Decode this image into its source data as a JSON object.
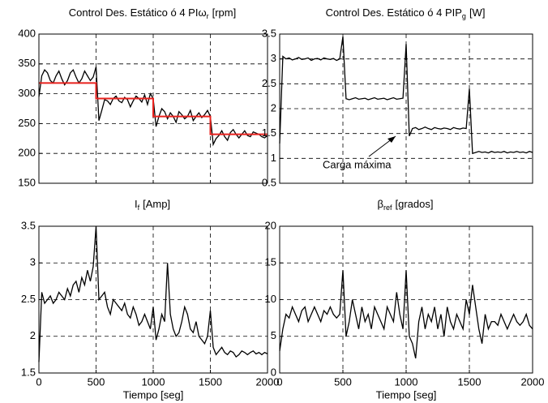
{
  "chart_data": [
    {
      "type": "line",
      "title": "Control Des. Estático ó 4 PI",
      "ylabel": {
        "symbol": "ω",
        "subscript": "r",
        "unit": "[rpm]"
      },
      "x": [
        0,
        25,
        50,
        75,
        100,
        125,
        150,
        175,
        200,
        225,
        250,
        275,
        300,
        325,
        350,
        375,
        400,
        425,
        450,
        475,
        500,
        525,
        550,
        575,
        600,
        625,
        650,
        675,
        700,
        725,
        750,
        775,
        800,
        825,
        850,
        875,
        900,
        925,
        950,
        975,
        1000,
        1025,
        1050,
        1075,
        1100,
        1125,
        1150,
        1175,
        1200,
        1225,
        1250,
        1275,
        1300,
        1325,
        1350,
        1375,
        1400,
        1425,
        1450,
        1475,
        1500,
        1525,
        1550,
        1575,
        1600,
        1625,
        1650,
        1675,
        1700,
        1725,
        1750,
        1775,
        1800,
        1825,
        1850,
        1875,
        1900,
        1925,
        1950,
        1975,
        2000
      ],
      "xlim": [
        0,
        2000
      ],
      "xticks": [
        0,
        500,
        1000,
        1500,
        2000
      ],
      "show_xtick_labels": false,
      "ylim": [
        150,
        400
      ],
      "yticks": [
        150,
        200,
        250,
        300,
        350,
        400
      ],
      "grid": true,
      "series": [
        {
          "color": "#000000",
          "values": [
            295,
            330,
            340,
            335,
            322,
            318,
            330,
            338,
            325,
            315,
            322,
            335,
            340,
            328,
            318,
            325,
            338,
            330,
            322,
            328,
            345,
            255,
            272,
            290,
            288,
            282,
            292,
            296,
            288,
            285,
            294,
            290,
            278,
            288,
            296,
            292,
            286,
            298,
            282,
            300,
            292,
            245,
            262,
            275,
            270,
            258,
            268,
            262,
            252,
            270,
            265,
            258,
            262,
            272,
            255,
            262,
            268,
            260,
            265,
            272,
            262,
            215,
            225,
            230,
            238,
            228,
            222,
            235,
            240,
            232,
            226,
            232,
            238,
            230,
            228,
            236,
            234,
            232,
            228,
            226,
            230
          ]
        },
        {
          "color": "#e8211d",
          "x": [
            0,
            500,
            500,
            1000,
            1000,
            1500,
            1500,
            2000
          ],
          "values": [
            318,
            318,
            292,
            292,
            262,
            262,
            232,
            232
          ]
        }
      ]
    },
    {
      "type": "line",
      "title": "Control Des. Estático ó 4 PI",
      "ylabel": {
        "symbol": "P",
        "subscript": "g",
        "unit": "[W]"
      },
      "annotation": "Carga máxima",
      "x": [
        0,
        25,
        50,
        75,
        100,
        125,
        150,
        175,
        200,
        225,
        250,
        275,
        300,
        325,
        350,
        375,
        400,
        425,
        450,
        475,
        500,
        525,
        550,
        575,
        600,
        625,
        650,
        675,
        700,
        725,
        750,
        775,
        800,
        825,
        850,
        875,
        900,
        925,
        950,
        975,
        1000,
        1025,
        1050,
        1075,
        1100,
        1125,
        1150,
        1175,
        1200,
        1225,
        1250,
        1275,
        1300,
        1325,
        1350,
        1375,
        1400,
        1425,
        1450,
        1475,
        1500,
        1525,
        1550,
        1575,
        1600,
        1625,
        1650,
        1675,
        1700,
        1725,
        1750,
        1775,
        1800,
        1825,
        1850,
        1875,
        1900,
        1925,
        1950,
        1975,
        2000
      ],
      "xlim": [
        0,
        2000
      ],
      "xticks": [
        0,
        500,
        1000,
        1500,
        2000
      ],
      "show_xtick_labels": false,
      "ylim": [
        0.5,
        3.5
      ],
      "yticks": [
        0.5,
        1,
        1.5,
        2,
        2.5,
        3,
        3.5
      ],
      "grid": true,
      "series": [
        {
          "color": "#000000",
          "values": [
            1.3,
            3.05,
            3.0,
            3.02,
            2.98,
            3.0,
            3.03,
            2.99,
            3.0,
            3.02,
            2.97,
            3.0,
            3.01,
            2.98,
            3.02,
            3.0,
            2.99,
            3.01,
            2.97,
            3.0,
            3.45,
            2.2,
            2.18,
            2.2,
            2.22,
            2.19,
            2.2,
            2.21,
            2.18,
            2.2,
            2.22,
            2.19,
            2.2,
            2.21,
            2.18,
            2.2,
            2.22,
            2.19,
            2.2,
            2.21,
            3.3,
            1.45,
            1.6,
            1.62,
            1.58,
            1.6,
            1.63,
            1.6,
            1.58,
            1.62,
            1.6,
            1.59,
            1.61,
            1.6,
            1.58,
            1.62,
            1.6,
            1.59,
            1.61,
            1.6,
            2.4,
            1.1,
            1.12,
            1.14,
            1.12,
            1.13,
            1.11,
            1.14,
            1.12,
            1.13,
            1.12,
            1.14,
            1.11,
            1.13,
            1.12,
            1.14,
            1.12,
            1.13,
            1.11,
            1.14,
            1.12
          ]
        }
      ]
    },
    {
      "type": "line",
      "ylabel": {
        "symbol": "I",
        "subscript": "f",
        "unit": "[Amp]"
      },
      "xlabel": "Tiempo [seg]",
      "x": [
        0,
        25,
        50,
        75,
        100,
        125,
        150,
        175,
        200,
        225,
        250,
        275,
        300,
        325,
        350,
        375,
        400,
        425,
        450,
        475,
        500,
        525,
        550,
        575,
        600,
        625,
        650,
        675,
        700,
        725,
        750,
        775,
        800,
        825,
        850,
        875,
        900,
        925,
        950,
        975,
        1000,
        1025,
        1050,
        1075,
        1100,
        1125,
        1150,
        1175,
        1200,
        1225,
        1250,
        1275,
        1300,
        1325,
        1350,
        1375,
        1400,
        1425,
        1450,
        1475,
        1500,
        1525,
        1550,
        1575,
        1600,
        1625,
        1650,
        1675,
        1700,
        1725,
        1750,
        1775,
        1800,
        1825,
        1850,
        1875,
        1900,
        1925,
        1950,
        1975,
        2000
      ],
      "xlim": [
        0,
        2000
      ],
      "xticks": [
        0,
        500,
        1000,
        1500,
        2000
      ],
      "show_xtick_labels": true,
      "ylim": [
        1.5,
        3.5
      ],
      "yticks": [
        1.5,
        2,
        2.5,
        3,
        3.5
      ],
      "grid": true,
      "series": [
        {
          "color": "#000000",
          "values": [
            1.65,
            2.6,
            2.45,
            2.5,
            2.55,
            2.45,
            2.5,
            2.6,
            2.55,
            2.5,
            2.65,
            2.55,
            2.7,
            2.75,
            2.6,
            2.8,
            2.7,
            2.9,
            2.75,
            2.95,
            3.5,
            2.5,
            2.55,
            2.6,
            2.4,
            2.3,
            2.5,
            2.45,
            2.4,
            2.35,
            2.45,
            2.3,
            2.25,
            2.4,
            2.3,
            2.15,
            2.2,
            2.3,
            2.2,
            2.1,
            2.4,
            1.95,
            2.1,
            2.3,
            2.2,
            3.0,
            2.3,
            2.1,
            2.0,
            2.05,
            2.2,
            2.4,
            2.3,
            2.1,
            2.05,
            2.2,
            2.0,
            1.95,
            1.9,
            2.0,
            2.35,
            1.85,
            1.75,
            1.8,
            1.85,
            1.78,
            1.75,
            1.8,
            1.78,
            1.72,
            1.75,
            1.8,
            1.78,
            1.75,
            1.78,
            1.8,
            1.76,
            1.78,
            1.75,
            1.78,
            1.76
          ]
        }
      ]
    },
    {
      "type": "line",
      "ylabel": {
        "symbol": "β",
        "subscript": "ref",
        "unit": "[grados]"
      },
      "xlabel": "Tiempo [seg]",
      "x": [
        0,
        25,
        50,
        75,
        100,
        125,
        150,
        175,
        200,
        225,
        250,
        275,
        300,
        325,
        350,
        375,
        400,
        425,
        450,
        475,
        500,
        525,
        550,
        575,
        600,
        625,
        650,
        675,
        700,
        725,
        750,
        775,
        800,
        825,
        850,
        875,
        900,
        925,
        950,
        975,
        1000,
        1025,
        1050,
        1075,
        1100,
        1125,
        1150,
        1175,
        1200,
        1225,
        1250,
        1275,
        1300,
        1325,
        1350,
        1375,
        1400,
        1425,
        1450,
        1475,
        1500,
        1525,
        1550,
        1575,
        1600,
        1625,
        1650,
        1675,
        1700,
        1725,
        1750,
        1775,
        1800,
        1825,
        1850,
        1875,
        1900,
        1925,
        1950,
        1975,
        2000
      ],
      "xlim": [
        0,
        2000
      ],
      "xticks": [
        0,
        500,
        1000,
        1500,
        2000
      ],
      "show_xtick_labels": true,
      "ylim": [
        0,
        20
      ],
      "yticks": [
        0,
        5,
        10,
        15,
        20
      ],
      "grid": true,
      "series": [
        {
          "color": "#000000",
          "values": [
            3,
            6,
            8,
            7.5,
            9,
            8,
            7,
            8.5,
            9,
            7,
            8,
            9,
            8,
            7,
            8.5,
            8,
            9,
            8,
            7.5,
            8,
            14,
            5,
            7,
            10,
            8,
            6,
            9,
            7,
            8,
            6,
            9,
            8,
            7,
            6,
            9,
            8,
            7,
            11,
            8,
            6,
            14,
            5,
            4,
            2,
            7,
            9,
            6,
            8,
            7,
            9,
            6,
            8,
            5,
            9,
            7,
            6,
            8,
            7,
            6,
            10,
            8,
            12,
            9,
            6,
            4,
            8,
            6,
            7,
            7,
            6.5,
            8,
            7,
            6,
            7,
            8,
            7,
            6.5,
            7,
            8,
            6.5,
            6
          ]
        }
      ]
    }
  ]
}
